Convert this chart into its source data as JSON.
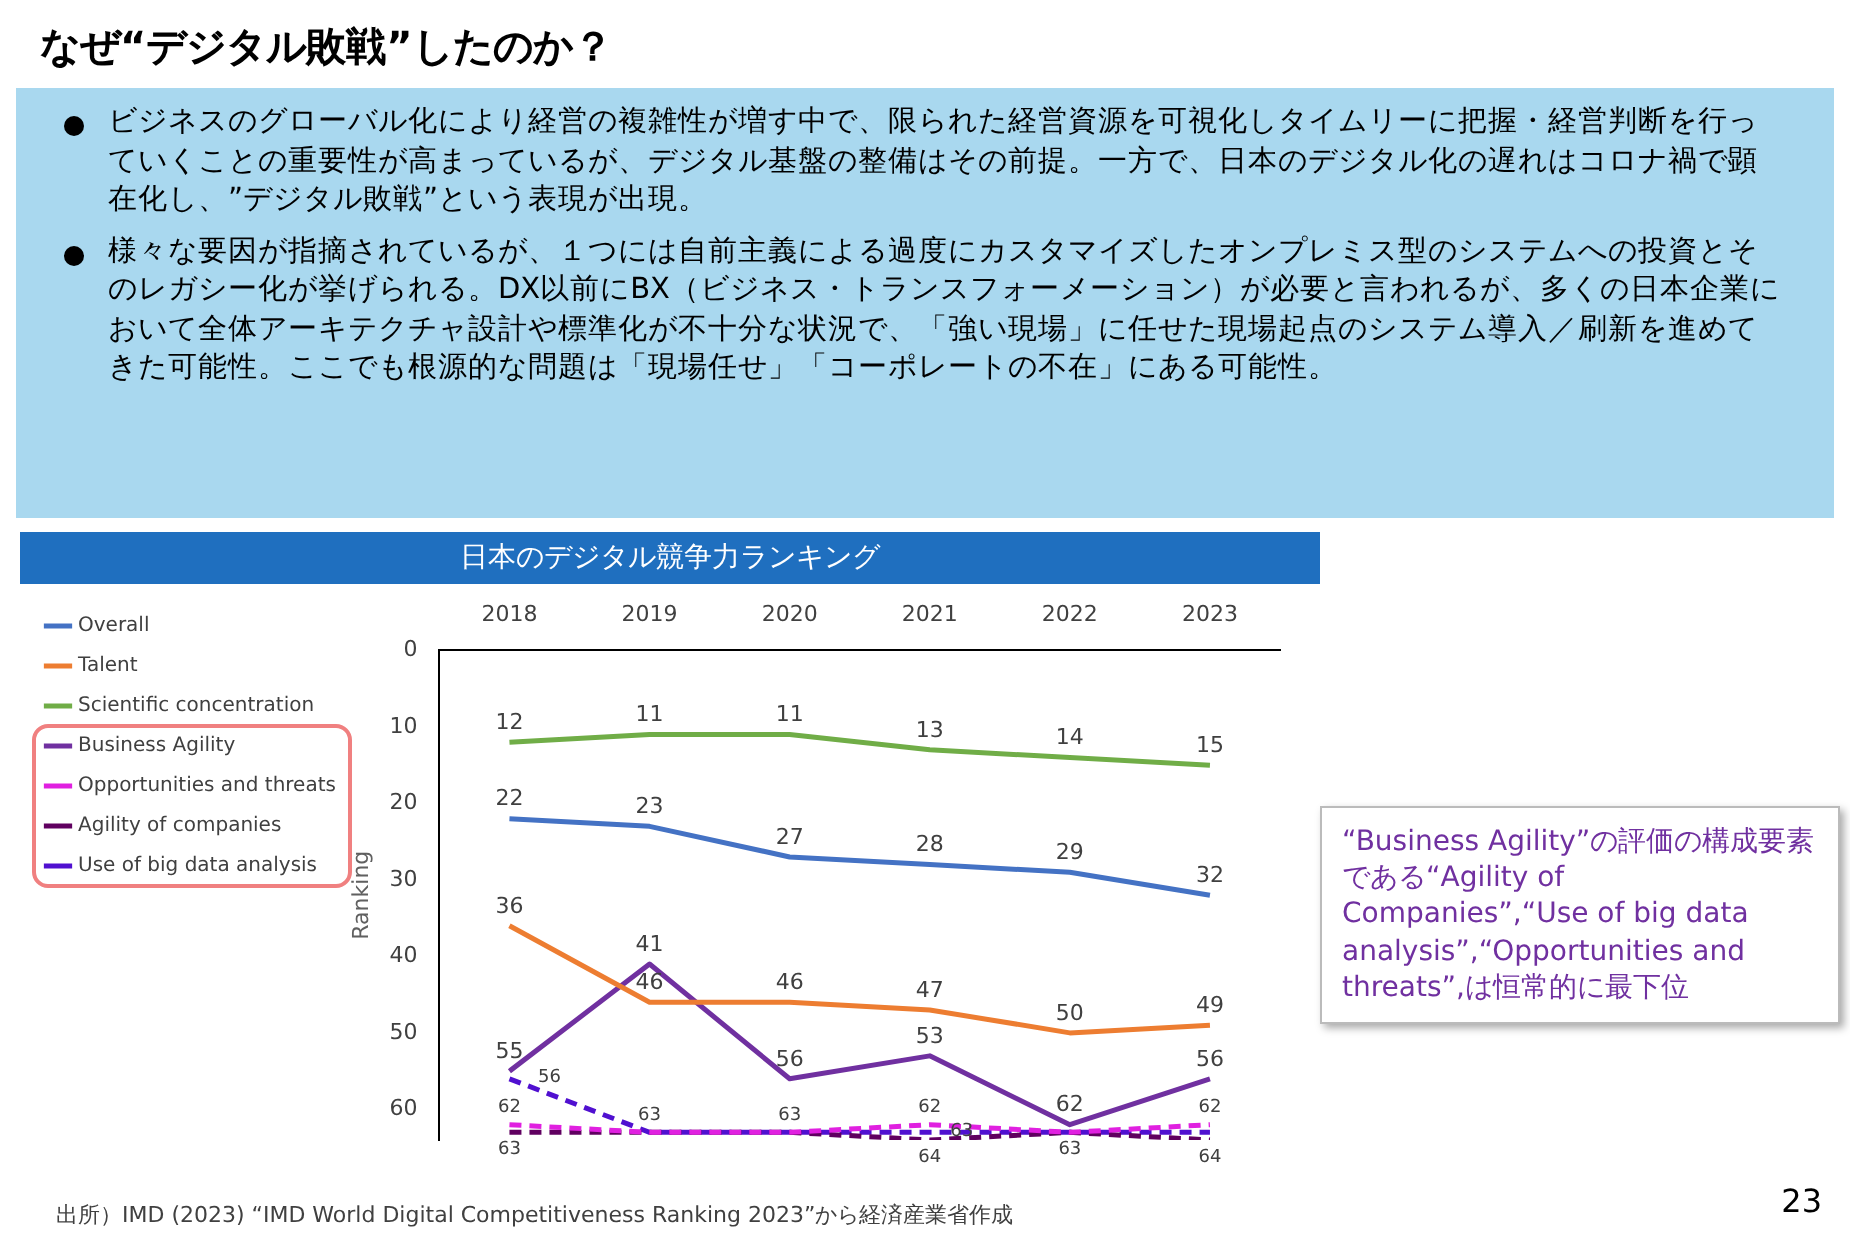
{
  "chart_data": {
    "type": "line",
    "title": "日本のデジタル競争力ランキング",
    "ylabel": "Ranking",
    "categories": [
      "2018",
      "2019",
      "2020",
      "2021",
      "2022",
      "2023"
    ],
    "series": [
      {
        "name": "Overall",
        "color": "#4472c4",
        "values": [
          22,
          23,
          27,
          28,
          29,
          32
        ]
      },
      {
        "name": "Talent",
        "color": "#ed7d31",
        "values": [
          36,
          46,
          46,
          47,
          50,
          49
        ]
      },
      {
        "name": "Scientific concentration",
        "color": "#70ad47",
        "values": [
          12,
          11,
          11,
          13,
          14,
          15
        ]
      },
      {
        "name": "Business Agility",
        "color": "#7030a0",
        "values": [
          55,
          41,
          56,
          53,
          62,
          56
        ]
      },
      {
        "name": "Opportunities and threats",
        "color": "#e020e0",
        "line_style": "dashed",
        "values": [
          62,
          63,
          63,
          62,
          63,
          62
        ],
        "value_labels": [
          "62",
          null,
          null,
          "62",
          null,
          "62"
        ]
      },
      {
        "name": "Agility of companies",
        "color": "#600060",
        "line_style": "dashed",
        "values": [
          63,
          63,
          63,
          64,
          63,
          64
        ],
        "value_labels": [
          "63",
          "63",
          "63",
          "64",
          "63",
          "64"
        ]
      },
      {
        "name": "Use of big data analysis",
        "color": "#5010d0",
        "line_style": "dashed",
        "values": [
          56,
          63,
          63,
          63,
          63,
          63
        ],
        "value_labels": [
          "56",
          null,
          null,
          "63",
          null,
          null
        ]
      }
    ],
    "ylim": [
      64,
      0
    ],
    "yticks": [
      0,
      10,
      20,
      30,
      40,
      50,
      60
    ],
    "grid": false,
    "legend": "left",
    "marker": "none",
    "line_style": "solid",
    "data_labels": true,
    "annotations": [
      "なぜ“デジタル敗戦”したのか？",
      "ビジネスのグローバル化により経営の複雑性が増す中で、限られた経営資源を可視化しタイムリーに把握・経営判断を行っていくことの重要性が高まっているが、デジタル基盤の整備はその前提。一方で、日本のデジタル化の遅れはコロナ禍で顕在化し、”デジタル敗戦”という表現が出現。",
      "様々な要因が指摘されているが、１つには自前主義による過度にカスタマイズしたオンプレミス型のシステムへの投資とそのレガシー化が挙げられる。DX以前にBX（ビジネス・トランスフォーメーション）が必要と言われるが、多くの日本企業において全体アーキテクチャ設計や標準化が不十分な状況で、「強い現場」に任せた現場起点のシステム導入／刷新を進めてきた可能性。ここでも根源的な問題は「現場任せ」「コーポレートの不在」にある可能性。",
      "“Business Agility”の評価の構成要素である“Agility of Companies”,“Use of big data analysis”,“Opportunities and threats”,は恒常的に最下位",
      "出所）IMD (2023) “IMD World Digital Competitiveness Ranking 2023”から経済産業省作成",
      "23"
    ]
  }
}
